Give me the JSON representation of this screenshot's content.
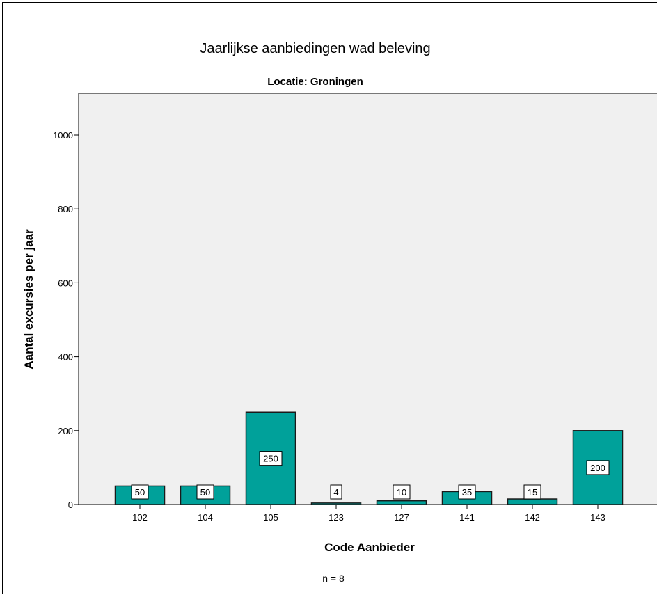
{
  "chart_data": {
    "type": "bar",
    "title": "Jaarlijkse aanbiedingen wad beleving",
    "subtitle": "Locatie: Groningen",
    "xlabel": "Code Aanbieder",
    "ylabel": "Aantal excursies per jaar",
    "categories": [
      "102",
      "104",
      "105",
      "123",
      "127",
      "141",
      "142",
      "143"
    ],
    "values": [
      50,
      50,
      250,
      4,
      10,
      35,
      15,
      200
    ],
    "data_labels": [
      "50",
      "50",
      "250",
      "4",
      "10",
      "35",
      "15",
      "200"
    ],
    "ylim": [
      0,
      1100
    ],
    "yticks": [
      0,
      200,
      400,
      600,
      800,
      1000
    ],
    "ytick_labels": [
      "0",
      "200",
      "400",
      "600",
      "800",
      "1000"
    ],
    "footnote": "n = 8",
    "grid": false,
    "legend": "none",
    "colors": {
      "bar_fill": "#00a19a",
      "bar_stroke": "#1a1a1a",
      "plot_background": "#f0f0f0"
    }
  }
}
